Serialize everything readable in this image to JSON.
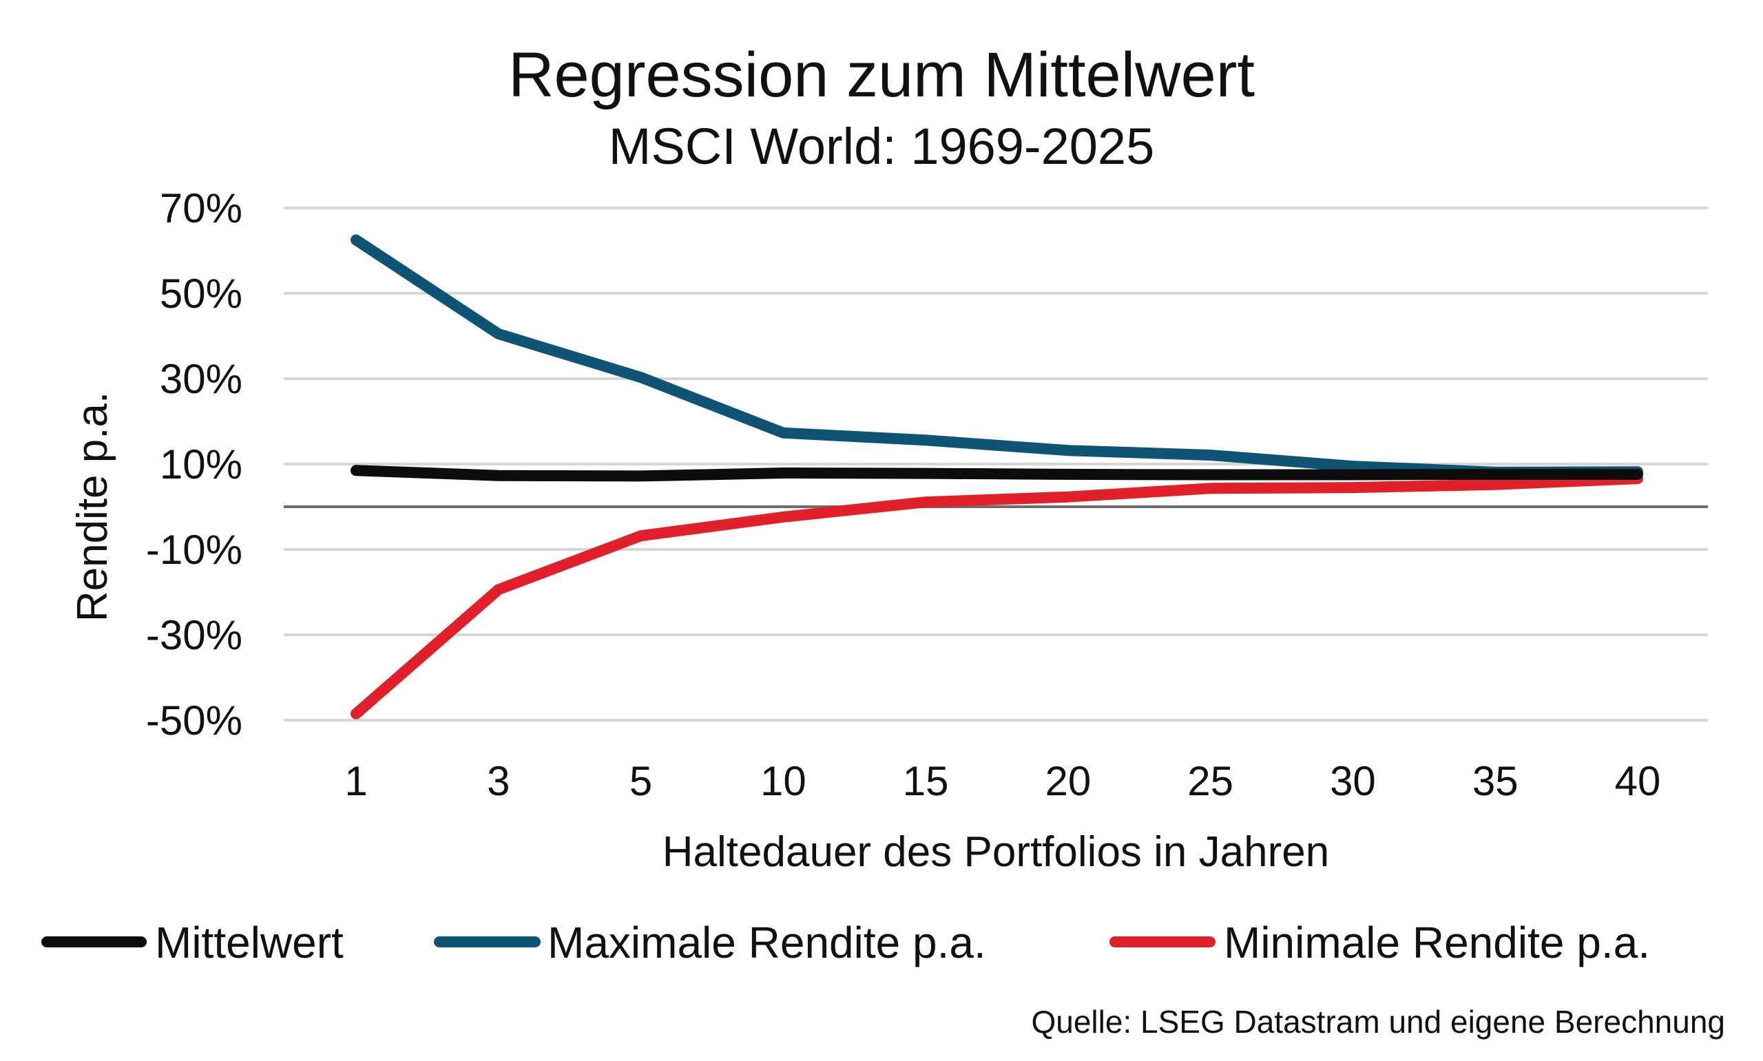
{
  "chart_data": {
    "type": "line",
    "title": "Regression zum Mittelwert",
    "subtitle": "MSCI World: 1969-2025",
    "xlabel": "Haltedauer des Portfolios in Jahren",
    "ylabel": "Rendite p.a.",
    "categories": [
      "1",
      "3",
      "5",
      "10",
      "15",
      "20",
      "25",
      "30",
      "35",
      "40"
    ],
    "y_ticks": [
      {
        "value": 70,
        "label": "70%"
      },
      {
        "value": 50,
        "label": "50%"
      },
      {
        "value": 30,
        "label": "30%"
      },
      {
        "value": 10,
        "label": "10%"
      },
      {
        "value": -10,
        "label": "-10%"
      },
      {
        "value": -30,
        "label": "-30%"
      },
      {
        "value": -50,
        "label": "-50%"
      }
    ],
    "ylim": [
      -50,
      70
    ],
    "zero_line": true,
    "grid": true,
    "legend_position": "bottom",
    "series": [
      {
        "name": "Mittelwert",
        "color": "#0d0d0d",
        "values": [
          8.5,
          7.3,
          7.2,
          7.9,
          7.8,
          7.6,
          7.5,
          7.5,
          7.6,
          7.6
        ]
      },
      {
        "name": "Maximale Rendite p.a.",
        "color": "#0f5474",
        "values": [
          62.5,
          40.5,
          30.3,
          17.3,
          15.6,
          13.2,
          12.1,
          9.5,
          8.1,
          8.2
        ]
      },
      {
        "name": "Minimale Rendite p.a.",
        "color": "#e2202a",
        "values": [
          -48.5,
          -19.4,
          -6.8,
          -2.4,
          1.1,
          2.3,
          4.3,
          4.5,
          5.2,
          6.6
        ]
      }
    ],
    "source": "Quelle: LSEG Datastram und eigene Berechnung"
  }
}
